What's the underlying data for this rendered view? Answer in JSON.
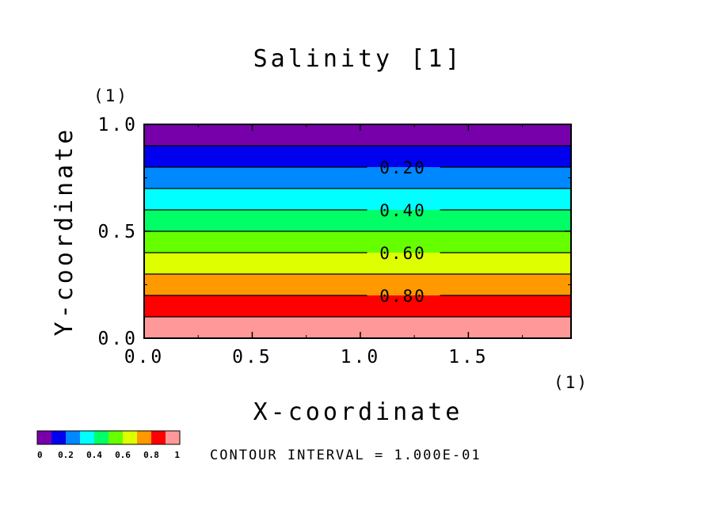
{
  "chart_data": {
    "type": "heatmap",
    "title": "Salinity [1]",
    "xlabel": "X-coordinate",
    "ylabel": "Y-coordinate",
    "x_unit": "(1)",
    "y_unit": "(1)",
    "xlim": [
      0.0,
      1.975
    ],
    "ylim": [
      0.0,
      1.0
    ],
    "x_ticks": [
      "0.0",
      "0.5",
      "1.0",
      "1.5"
    ],
    "x_tick_values": [
      0.0,
      0.5,
      1.0,
      1.5
    ],
    "y_ticks": [
      "0.0",
      "0.5",
      "1.0"
    ],
    "y_tick_values": [
      0.0,
      0.5,
      1.0
    ],
    "bands": [
      {
        "y0": 0.0,
        "y1": 0.1,
        "color": "#ff9999"
      },
      {
        "y0": 0.1,
        "y1": 0.2,
        "color": "#ff0000"
      },
      {
        "y0": 0.2,
        "y1": 0.3,
        "color": "#ff9900"
      },
      {
        "y0": 0.3,
        "y1": 0.4,
        "color": "#ddff00"
      },
      {
        "y0": 0.4,
        "y1": 0.5,
        "color": "#66ff00"
      },
      {
        "y0": 0.5,
        "y1": 0.6,
        "color": "#00ff66"
      },
      {
        "y0": 0.6,
        "y1": 0.7,
        "color": "#00ffff"
      },
      {
        "y0": 0.7,
        "y1": 0.8,
        "color": "#0088ff"
      },
      {
        "y0": 0.8,
        "y1": 0.9,
        "color": "#0000ee"
      },
      {
        "y0": 0.9,
        "y1": 1.0,
        "color": "#7700aa"
      }
    ],
    "contour_levels": [
      0.1,
      0.2,
      0.3,
      0.4,
      0.5,
      0.6,
      0.7,
      0.8,
      0.9
    ],
    "contour_labels": [
      {
        "text": "0.20",
        "y": 0.8,
        "x": 1.2
      },
      {
        "text": "0.40",
        "y": 0.6,
        "x": 1.2
      },
      {
        "text": "0.60",
        "y": 0.4,
        "x": 1.2
      },
      {
        "text": "0.80",
        "y": 0.2,
        "x": 1.2
      }
    ],
    "colorbar": {
      "colors": [
        "#7700aa",
        "#0000ee",
        "#0088ff",
        "#00ffff",
        "#00ff66",
        "#66ff00",
        "#ddff00",
        "#ff9900",
        "#ff0000",
        "#ff9999"
      ],
      "labels": [
        "0",
        "0.2",
        "0.4",
        "0.6",
        "0.8",
        "1"
      ]
    },
    "note": "CONTOUR INTERVAL = 1.000E-01"
  }
}
